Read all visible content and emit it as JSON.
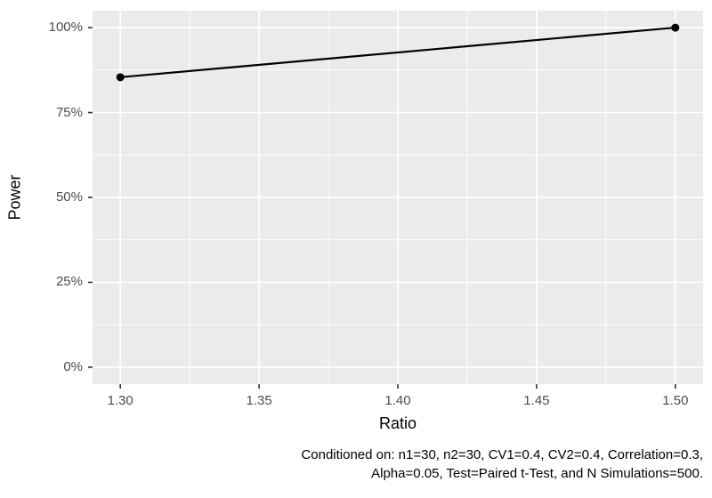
{
  "chart_data": {
    "type": "line",
    "series": [
      {
        "name": "Power",
        "x": [
          1.3,
          1.5
        ],
        "y": [
          0.854,
          1.0
        ]
      }
    ],
    "xlabel": "Ratio",
    "ylabel": "Power",
    "xlim": [
      1.3,
      1.5
    ],
    "ylim": [
      0,
      1
    ],
    "x_ticks": [
      1.3,
      1.35,
      1.4,
      1.45,
      1.5
    ],
    "x_tick_labels": [
      "1.30",
      "1.35",
      "1.40",
      "1.45",
      "1.50"
    ],
    "y_ticks": [
      0,
      0.25,
      0.5,
      0.75,
      1.0
    ],
    "y_tick_labels": [
      "0%",
      "25%",
      "50%",
      "75%",
      "100%"
    ],
    "grid": "major-and-minor",
    "legend": "none",
    "caption_lines": [
      "Conditioned on: n1=30, n2=30, CV1=0.4, CV2=0.4, Correlation=0.3,",
      "Alpha=0.05, Test=Paired t-Test, and N Simulations=500."
    ],
    "colors": {
      "panel_background": "#EBEBEB",
      "grid_line": "#FFFFFF",
      "data_line": "#000000",
      "data_point": "#000000",
      "tick_mark": "#333333",
      "tick_label": "#4D4D4D",
      "axis_title": "#000000",
      "caption": "#000000",
      "figure_background": "#FFFFFF"
    }
  }
}
